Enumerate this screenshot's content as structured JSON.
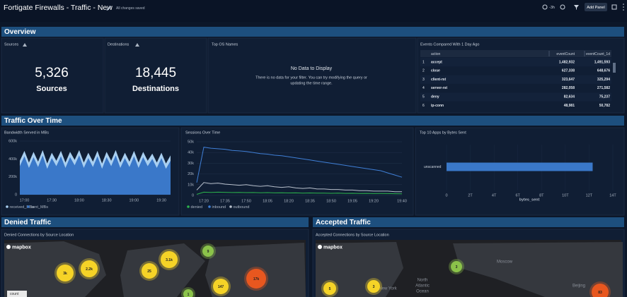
{
  "header": {
    "title": "Fortigate Firewalls - Traffic - New",
    "status": "All changes saved",
    "time_range": "-3h",
    "add_button": "Add Panel"
  },
  "sections": [
    "Overview",
    "Traffic Over Time",
    "Denied Traffic",
    "Accepted Traffic"
  ],
  "sources": {
    "title": "Sources",
    "value": "5,326",
    "label": "Sources"
  },
  "destinations": {
    "title": "Destinations",
    "value": "18,445",
    "label": "Destinations"
  },
  "os_panel": {
    "title": "Top OS Names",
    "message": "No Data to Display",
    "detail": [
      "There is no data for your filter. You can try modifying the query or",
      "updating the time range."
    ]
  },
  "events_table": {
    "title": "Events Compared With 1 Day Ago",
    "columns": [
      "action",
      "eventCount",
      "eventCount_1d"
    ],
    "rows": [
      [
        "1",
        "accept",
        "1,482,932",
        "1,491,593"
      ],
      [
        "2",
        "close",
        "627,338",
        "648,676"
      ],
      [
        "3",
        "client-rst",
        "323,647",
        "325,294"
      ],
      [
        "4",
        "server-rst",
        "282,058",
        "271,582"
      ],
      [
        "5",
        "deny",
        "82,634",
        "75,237"
      ],
      [
        "6",
        "ip-conn",
        "48,981",
        "50,782"
      ]
    ]
  },
  "chart_data": [
    {
      "type": "area",
      "title": "Bandwidth Served in MBs",
      "categories": [
        null,
        "17:00",
        null,
        null,
        null,
        null,
        null,
        "17:30",
        null,
        null,
        null,
        null,
        null,
        "18:00",
        null,
        null,
        null,
        null,
        null,
        "18:30",
        null,
        null,
        null,
        null,
        null,
        "19:00",
        null,
        null,
        null,
        null,
        null,
        "19:30",
        null,
        null
      ],
      "series": [
        {
          "name": "received_MBs",
          "color": "#a9cff0",
          "values": [
            380000,
            490000,
            360000,
            480000,
            370000,
            500000,
            350000,
            470000,
            380000,
            490000,
            360000,
            480000,
            390000,
            500000,
            360000,
            470000,
            370000,
            490000,
            350000,
            480000,
            380000,
            500000,
            360000,
            470000,
            370000,
            490000,
            360000,
            480000,
            380000,
            460000,
            360000,
            470000,
            350000,
            440000
          ]
        },
        {
          "name": "sent_MBs",
          "color": "#3a78c9",
          "values": [
            320000,
            430000,
            300000,
            420000,
            310000,
            440000,
            290000,
            410000,
            320000,
            430000,
            300000,
            420000,
            330000,
            440000,
            300000,
            410000,
            310000,
            430000,
            290000,
            420000,
            320000,
            440000,
            300000,
            410000,
            310000,
            430000,
            300000,
            420000,
            320000,
            400000,
            300000,
            410000,
            290000,
            380000
          ]
        }
      ],
      "ylim": [
        0,
        600000
      ],
      "yticks": [
        0,
        {
          "value": 200000,
          "label": "200k"
        },
        {
          "value": 400000,
          "label": "400k"
        },
        {
          "value": 600000,
          "label": "600k"
        }
      ],
      "grid": true
    },
    {
      "type": "line",
      "title": "Sessions Over Time",
      "categories": [
        null,
        "17:20",
        null,
        null,
        "17:35",
        null,
        null,
        "17:50",
        null,
        null,
        "18:05",
        null,
        null,
        "18:20",
        null,
        null,
        "18:35",
        null,
        null,
        "18:50",
        null,
        null,
        "19:05",
        null,
        null,
        "19:20",
        null,
        null,
        null,
        "19:40"
      ],
      "series": [
        {
          "name": "denied",
          "color": "#2bb24c",
          "values": [
            1000,
            3000,
            2800,
            3000,
            2900,
            2700,
            2800,
            2600,
            2700,
            2500,
            2600,
            2400,
            2500,
            2300,
            2400,
            2200,
            2300,
            2100,
            2200,
            2000,
            2100,
            1900,
            2000,
            1800,
            1900,
            1700,
            1800,
            1700,
            1600,
            1500
          ]
        },
        {
          "name": "inbound",
          "color": "#3f7fd6",
          "values": [
            12000,
            45000,
            44000,
            43500,
            43000,
            42000,
            41500,
            41000,
            40000,
            39000,
            38500,
            37500,
            37000,
            36000,
            35000,
            34000,
            33000,
            32000,
            31000,
            30000,
            29000,
            28000,
            27000,
            26000,
            25000,
            24000,
            23000,
            21000,
            19000,
            17000
          ]
        },
        {
          "name": "outbound",
          "color": "#b8c0cc",
          "values": [
            5000,
            12000,
            11000,
            11500,
            10500,
            10000,
            9500,
            10000,
            9000,
            8500,
            9000,
            8000,
            7500,
            8000,
            7000,
            6500,
            7000,
            6000,
            6000,
            5500,
            5500,
            5000,
            5000,
            4500,
            4500,
            4000,
            4000,
            4000,
            3500,
            3500
          ]
        }
      ],
      "ylim": [
        0,
        50000
      ],
      "yticks": [
        0,
        {
          "value": 10000,
          "label": "10k"
        },
        {
          "value": 20000,
          "label": "20k"
        },
        {
          "value": 30000,
          "label": "30k"
        },
        {
          "value": 40000,
          "label": "40k"
        },
        {
          "value": 50000,
          "label": "50k"
        }
      ],
      "grid": true
    },
    {
      "type": "barh",
      "title": "Top 10 Apps by Bytes Sent",
      "categories": [
        "unscanned"
      ],
      "values": [
        12300000000000
      ],
      "color": "#3a78c9",
      "xlim": [
        0,
        14000000000000
      ],
      "xticks": [
        0,
        {
          "value": 2000000000000,
          "label": "2T"
        },
        {
          "value": 4000000000000,
          "label": "4T"
        },
        {
          "value": 6000000000000,
          "label": "6T"
        },
        {
          "value": 8000000000000,
          "label": "8T"
        },
        {
          "value": 10000000000000,
          "label": "10T"
        },
        {
          "value": 12000000000000,
          "label": "12T"
        },
        {
          "value": 14000000000000,
          "label": "14T"
        }
      ],
      "xlabel": "bytes_sent",
      "grid": true
    }
  ],
  "maps": [
    {
      "title": "Denied Connections by Source Location",
      "brand": "mapbox",
      "legend": "count",
      "clusters": [
        "3k",
        "2.2k",
        "25",
        "3.1k",
        "9",
        "147",
        "17k",
        "1"
      ]
    },
    {
      "title": "Accepted Connections by Source Location",
      "brand": "mapbox",
      "clusters": [
        "3",
        "3",
        "5",
        "83"
      ],
      "places": [
        "North",
        "Atlantic",
        "Ocean",
        "New York",
        "Moscow",
        "Beijing"
      ]
    }
  ]
}
